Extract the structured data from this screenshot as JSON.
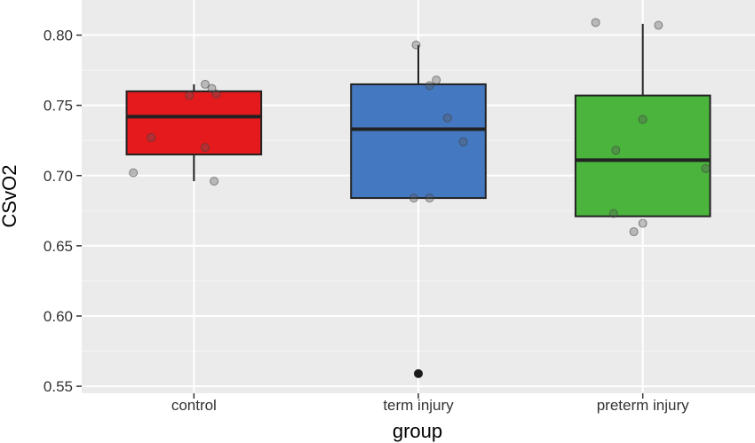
{
  "chart_data": {
    "type": "box",
    "xlabel": "group",
    "ylabel": "CSvO2",
    "ylim": [
      0.545,
      0.825
    ],
    "yticks": [
      0.55,
      0.6,
      0.65,
      0.7,
      0.75,
      0.8
    ],
    "ytick_labels": [
      "0.55",
      "0.60",
      "0.65",
      "0.70",
      "0.75",
      "0.80"
    ],
    "grid": true,
    "legend": "none",
    "categories": [
      "control",
      "term injury",
      "preterm injury"
    ],
    "boxes": [
      {
        "name": "control",
        "color": "#e41a1c",
        "q1": 0.715,
        "median": 0.742,
        "q3": 0.76,
        "whisker_low": 0.696,
        "whisker_high": 0.765,
        "outliers": [],
        "points": [
          {
            "x": 0.05,
            "y": 0.765
          },
          {
            "x": 0.08,
            "y": 0.762
          },
          {
            "x": -0.02,
            "y": 0.757
          },
          {
            "x": 0.1,
            "y": 0.758
          },
          {
            "x": -0.19,
            "y": 0.727
          },
          {
            "x": 0.05,
            "y": 0.72
          },
          {
            "x": -0.27,
            "y": 0.702
          },
          {
            "x": 0.09,
            "y": 0.696
          }
        ]
      },
      {
        "name": "term injury",
        "color": "#4478c0",
        "q1": 0.684,
        "median": 0.733,
        "q3": 0.765,
        "whisker_low": 0.684,
        "whisker_high": 0.793,
        "outliers": [
          0.559
        ],
        "points": [
          {
            "x": -0.01,
            "y": 0.793
          },
          {
            "x": 0.08,
            "y": 0.768
          },
          {
            "x": 0.05,
            "y": 0.764
          },
          {
            "x": 0.13,
            "y": 0.741
          },
          {
            "x": 0.2,
            "y": 0.724
          },
          {
            "x": -0.02,
            "y": 0.684
          },
          {
            "x": 0.05,
            "y": 0.684
          }
        ]
      },
      {
        "name": "preterm injury",
        "color": "#4ab43c",
        "q1": 0.671,
        "median": 0.711,
        "q3": 0.757,
        "whisker_low": 0.671,
        "whisker_high": 0.808,
        "outliers": [],
        "points": [
          {
            "x": -0.21,
            "y": 0.809
          },
          {
            "x": 0.07,
            "y": 0.807
          },
          {
            "x": 0.0,
            "y": 0.74
          },
          {
            "x": -0.12,
            "y": 0.718
          },
          {
            "x": 0.28,
            "y": 0.705
          },
          {
            "x": -0.13,
            "y": 0.673
          },
          {
            "x": 0.0,
            "y": 0.666
          },
          {
            "x": -0.04,
            "y": 0.66
          }
        ]
      }
    ]
  }
}
